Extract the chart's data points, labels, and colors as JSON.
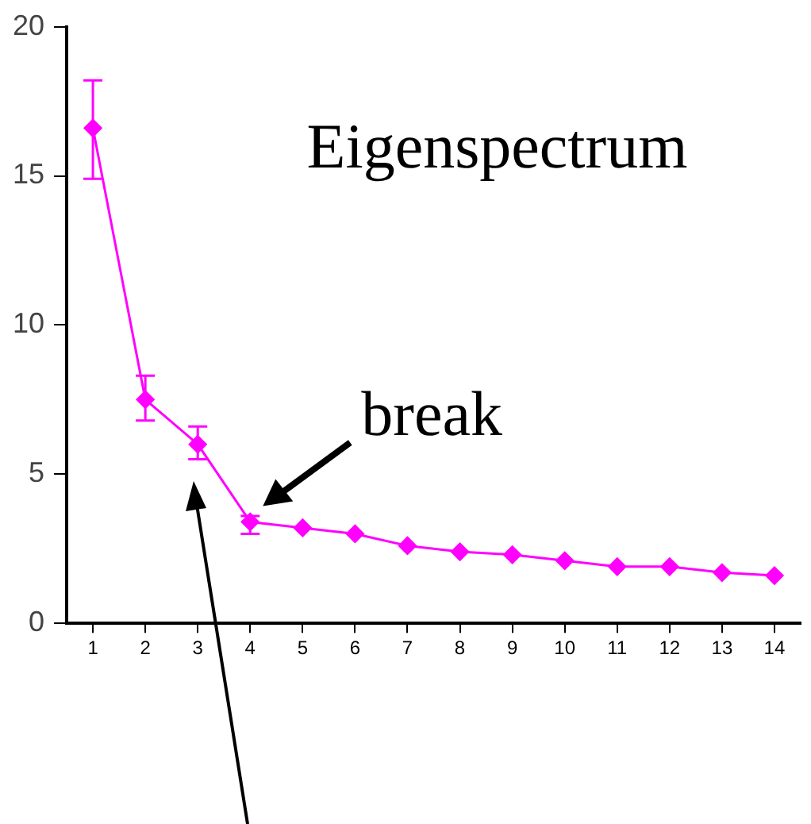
{
  "chart_data": {
    "type": "line",
    "title": "Eigenspectrum",
    "x": [
      1,
      2,
      3,
      4,
      5,
      6,
      7,
      8,
      9,
      10,
      11,
      12,
      13,
      14
    ],
    "series": [
      {
        "color": "#ff00ff",
        "values": [
          16.6,
          7.5,
          6.0,
          3.4,
          3.2,
          3.0,
          2.6,
          2.4,
          2.3,
          2.1,
          1.9,
          1.9,
          1.7,
          1.6
        ],
        "errors": [
          [
            14.9,
            18.2
          ],
          [
            6.8,
            8.3
          ],
          [
            5.5,
            6.6
          ],
          [
            3.0,
            3.6
          ],
          null,
          null,
          null,
          null,
          null,
          null,
          null,
          null,
          null,
          null
        ]
      }
    ],
    "xlim": [
      0.5,
      14.5
    ],
    "xticks": [
      1,
      2,
      3,
      4,
      5,
      6,
      7,
      8,
      9,
      10,
      11,
      12,
      13,
      14
    ],
    "ylim": [
      0,
      20
    ],
    "yticks": [
      0,
      5,
      10,
      15,
      20
    ],
    "grid": false,
    "legend": false,
    "marker": "diamond",
    "line_style": "solid",
    "annotations": [
      {
        "text": "break",
        "x": 4,
        "y": 3.4
      }
    ]
  }
}
